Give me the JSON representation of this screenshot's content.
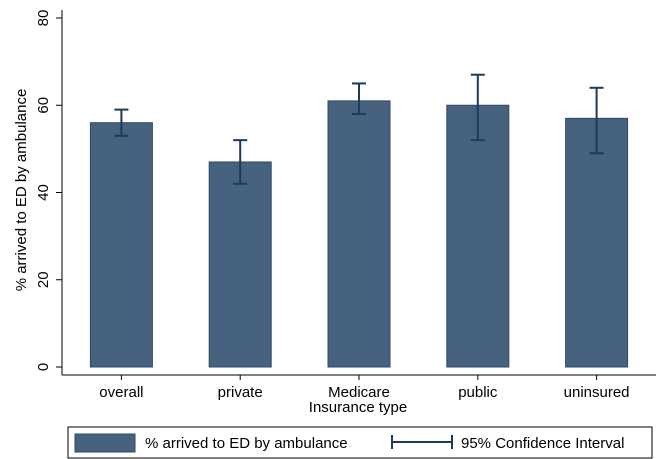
{
  "chart_data": {
    "type": "bar",
    "categories": [
      "overall",
      "private",
      "Medicare",
      "public",
      "uninsured"
    ],
    "series": [
      {
        "name": "% arrived to ED by ambulance",
        "color": "#46627f",
        "values": [
          56,
          47,
          61,
          60,
          57
        ]
      }
    ],
    "ci_low": [
      53,
      42,
      58,
      52,
      49
    ],
    "ci_high": [
      59,
      52,
      65,
      67,
      64
    ],
    "ci_name": "95% Confidence Interval",
    "ci_color": "#1e3a5a",
    "x_label": "Insurance type",
    "y_label": "% arrived to ED by ambulance",
    "ylim": [
      0,
      80
    ],
    "yticks": [
      0,
      20,
      40,
      60,
      80
    ],
    "grid": false
  }
}
